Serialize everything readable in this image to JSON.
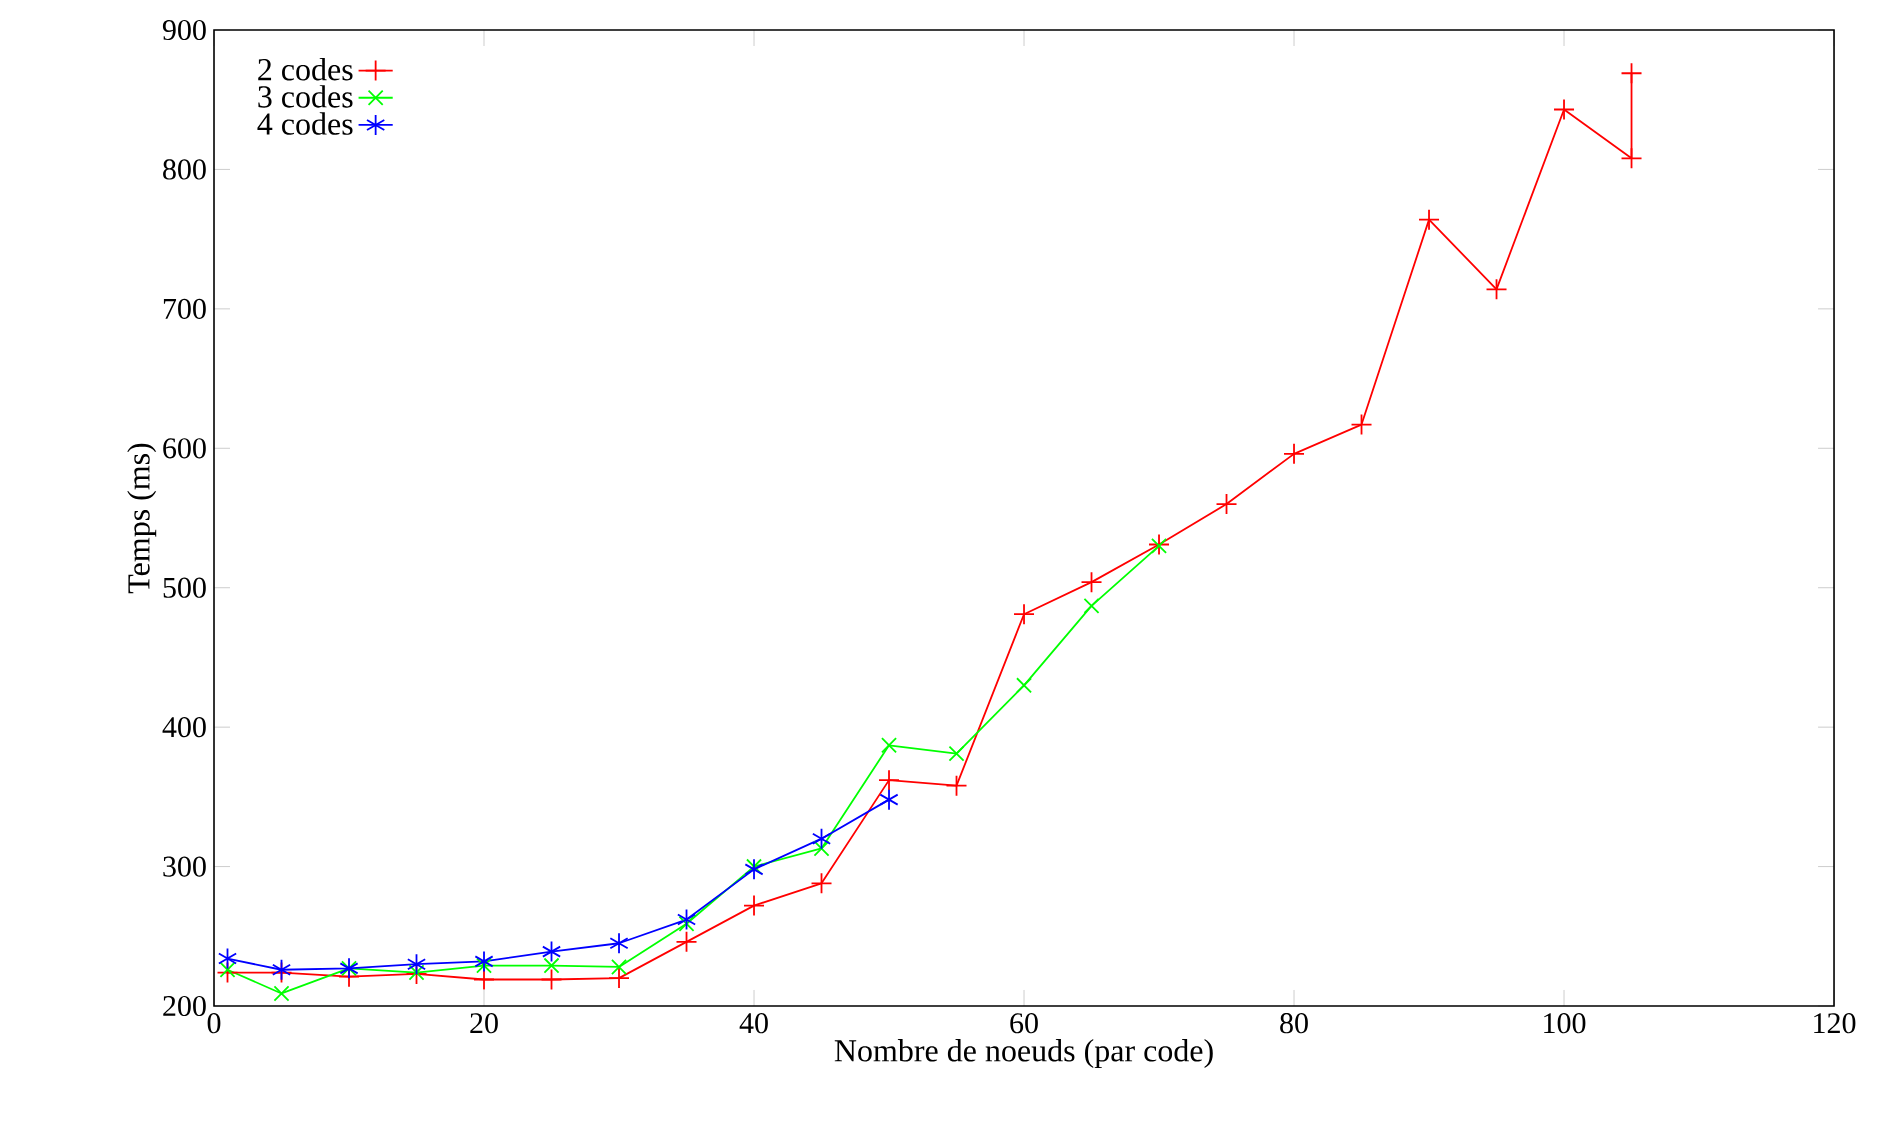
{
  "chart_data": {
    "type": "line",
    "xlabel": "Nombre de noeuds (par code)",
    "ylabel": "Temps (ms)",
    "xlim": [
      0,
      120
    ],
    "ylim": [
      200,
      900
    ],
    "xticks": [
      0,
      20,
      40,
      60,
      80,
      100,
      120
    ],
    "yticks": [
      200,
      300,
      400,
      500,
      600,
      700,
      800,
      900
    ],
    "grid": false,
    "legend": "top left",
    "line_style": "solid",
    "series": [
      {
        "name": "2 codes",
        "color": "#ff0000",
        "marker": "cross",
        "x": [
          1,
          5,
          10,
          15,
          20,
          25,
          30,
          35,
          40,
          45,
          50,
          55,
          60,
          65,
          70,
          75,
          80,
          85,
          90,
          95,
          100,
          105,
          105
        ],
        "values": [
          224,
          224,
          221,
          223,
          219,
          219,
          220,
          246,
          272,
          288,
          362,
          358,
          481,
          504,
          531,
          560,
          596,
          617,
          764,
          714,
          843,
          808,
          869
        ]
      },
      {
        "name": "3 codes",
        "color": "#00ff00",
        "marker": "cross",
        "x": [
          1,
          5,
          10,
          15,
          20,
          25,
          30,
          35,
          40,
          45,
          50,
          55,
          60,
          65,
          70
        ],
        "values": [
          226,
          209,
          227,
          224,
          229,
          229,
          228,
          259,
          300,
          313,
          387,
          381,
          430,
          487,
          530
        ]
      },
      {
        "name": "4 codes",
        "color": "#0000ff",
        "marker": "cross",
        "x": [
          1,
          5,
          10,
          15,
          20,
          25,
          30,
          35,
          40,
          45,
          50
        ],
        "values": [
          234,
          226,
          227,
          230,
          232,
          239,
          245,
          262,
          298,
          320,
          348
        ]
      }
    ]
  }
}
